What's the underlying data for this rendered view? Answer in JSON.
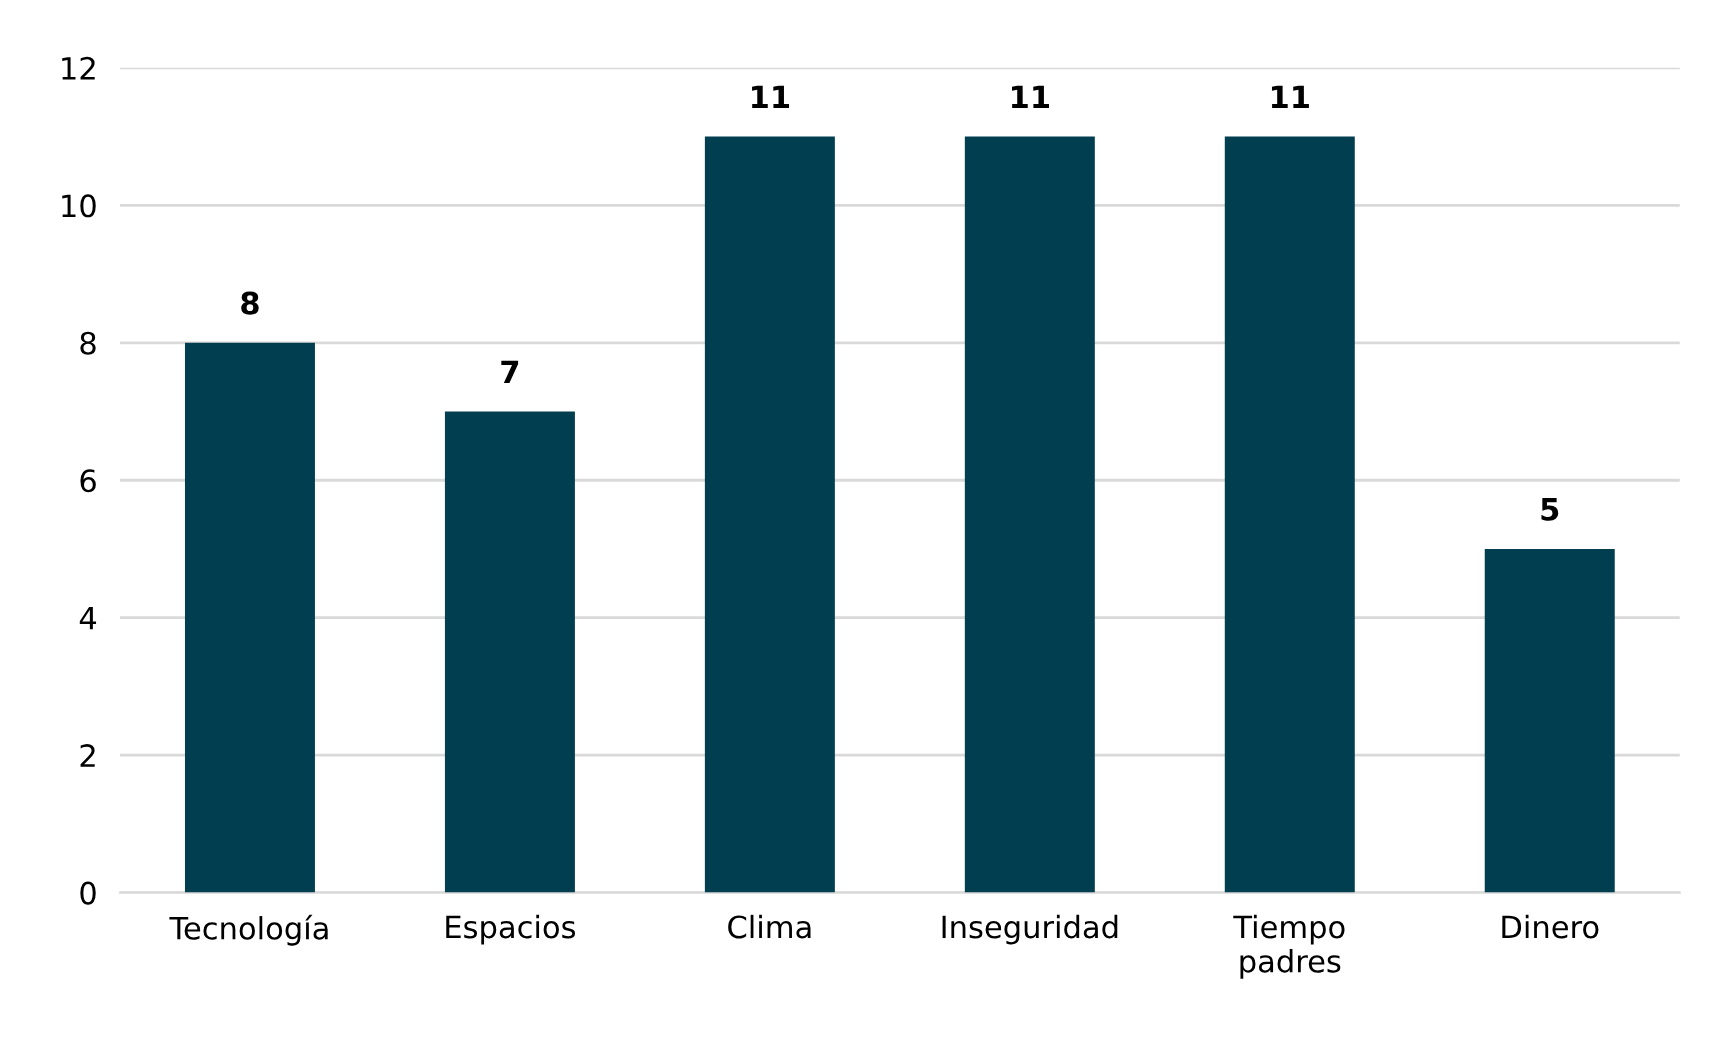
{
  "chart_data": {
    "type": "bar",
    "categories": [
      "Tecnología",
      "Espacios",
      "Clima",
      "Inseguridad",
      "Tiempo padres",
      "Dinero"
    ],
    "values": [
      8,
      7,
      11,
      11,
      11,
      5
    ],
    "color": "#013e50",
    "ylim": [
      0,
      12
    ],
    "yticks": [
      0,
      2,
      4,
      6,
      8,
      10,
      12
    ],
    "grid": "y",
    "data_labels": true
  }
}
